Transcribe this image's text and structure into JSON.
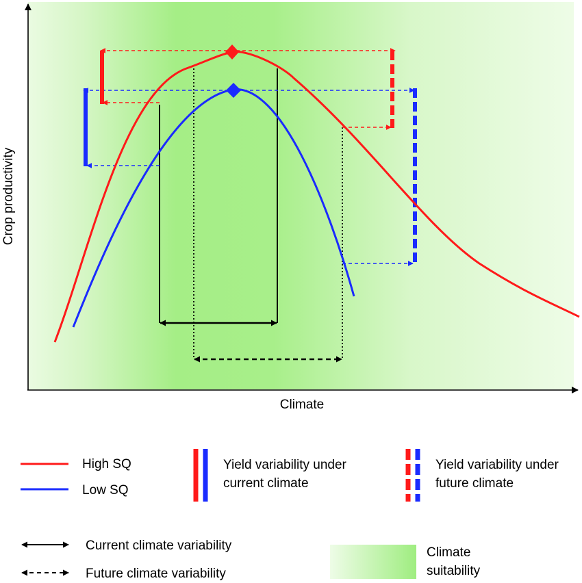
{
  "axes": {
    "x_label": "Climate",
    "y_label": "Crop productivity"
  },
  "colors": {
    "high_sq": "#ff1a1a",
    "low_sq": "#1a2bff",
    "suitability_peak": "#a3ee86",
    "suitability_edge": "#eafbe1"
  },
  "curves": [
    {
      "name": "High SQ",
      "color_key": "high_sq",
      "peak_marker": "diamond"
    },
    {
      "name": "Low SQ",
      "color_key": "low_sq",
      "peak_marker": "diamond"
    }
  ],
  "legend": {
    "high_sq": "High SQ",
    "low_sq": "Low SQ",
    "current_yield_line1": "Yield variability under",
    "current_yield_line2": "current climate",
    "future_yield_line1": "Yield variability under",
    "future_yield_line2": "future climate",
    "current_climate": "Current climate variability",
    "future_climate": "Future climate variability",
    "suitability_line1": "Climate",
    "suitability_line2": "suitability"
  }
}
